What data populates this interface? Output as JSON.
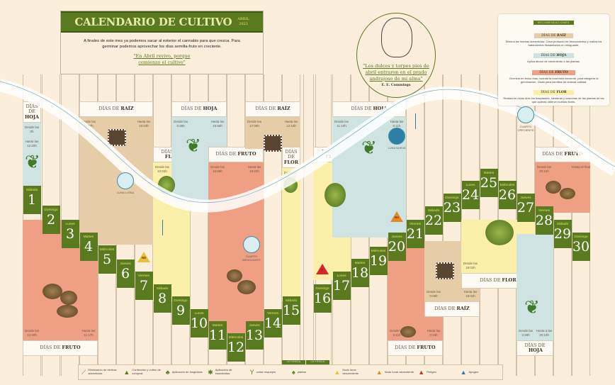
{
  "header": {
    "title": "CALENDARIO DE CULTIVO",
    "month": "ABRIL",
    "year": "2023",
    "intro": "A finales de este mes ya podemos sacar al exterior el cannabis para que crezca. Para germinar podemos aprovechar los días semilla-fruto en creciente.",
    "quote": "\"En Abril revivo, porque comienzo el cultivo\""
  },
  "portrait": {
    "quote": "\"Los dulces y torpes pies de abril entraron en el prado andrajoso de mi alma\"",
    "author": "E. E. Cummings"
  },
  "recommendations": {
    "title": "RECOMENDACIONES",
    "items": [
      {
        "head_prefix": "DÍAS DE",
        "head": "RAÍZ",
        "color": "#e6cda8",
        "text": "Elimina las hierbas adventicias. Cava profundo en desconderisa y realiza los tratamientos fitosanitarios en minguante."
      },
      {
        "head_prefix": "DÍAS DE",
        "head": "HOJA",
        "color": "#cfe3e3",
        "text": "Aplica abono de crecimiento a las plantas."
      },
      {
        "head_prefix": "DÍAS DE",
        "head": "FRUTO",
        "color": "#ef9f83",
        "text": "Germina en estos días, cuando la luna está creciente, para asegurar la germinación. Úsalo para semillas de dudosa calidad."
      },
      {
        "head_prefix": "DÍAS DE",
        "head": "FLOR",
        "color": "#fbefaa",
        "text": "Realiza en estos días los trasplantes, siembras y cosechas de las plantas de las que quieras obtener buenas flores."
      }
    ]
  },
  "colors": {
    "accent": "#5a7a1f",
    "fruto": "#ef9f83",
    "raiz": "#e6cda8",
    "hoja": "#cfe3e3",
    "flor": "#fbefaa"
  },
  "periods": [
    {
      "prefix": "DÍAS DE",
      "type": "HOJA",
      "desde": "Desde las 0h",
      "hasta": "Hasta las 12:20h"
    },
    {
      "prefix": "DÍAS DE",
      "type": "FRUTO",
      "desde": "Desde las 12:20h",
      "hasta": "Hasta las 11:17h"
    },
    {
      "prefix": "DÍAS DE",
      "type": "RAÍZ",
      "desde": "Desde las 11:17h",
      "hasta": "Hasta las 10:03h"
    },
    {
      "prefix": "DÍAS DE",
      "type": "FLOR",
      "desde": "Desde las 10:03h",
      "hasta": "Hasta las 9:35h"
    },
    {
      "prefix": "DÍAS DE",
      "type": "HOJA",
      "desde": "Desde las 9:36h",
      "hasta": "Hasta las 15:56h"
    },
    {
      "prefix": "DÍAS DE",
      "type": "FRUTO",
      "desde": "Desde las 16:56h",
      "hasta": "Hasta las 19:20h"
    },
    {
      "prefix": "DÍAS DE",
      "type": "RAÍZ",
      "desde": "Desde las 17:06h",
      "hasta": "Hasta las 12:18h"
    },
    {
      "prefix": "DÍAS DE",
      "type": "FLOR",
      "desde": "Desde las 19:08h",
      "hasta": ""
    },
    {
      "prefix": "DÍAS DE",
      "type": "FLOR",
      "desde": "",
      "hasta": "Hasta las 11:12h"
    },
    {
      "prefix": "DÍAS DE",
      "type": "HOJA",
      "desde": "Desde las 11:10h",
      "hasta": "Hasta las 6:11h"
    },
    {
      "prefix": "DÍAS DE",
      "type": "FRUTO",
      "desde": "Desde las 5:11h",
      "hasta": "Hasta las 0:16h"
    },
    {
      "prefix": "DÍAS DE",
      "type": "RAÍZ",
      "desde": "Desde las 0:09h",
      "hasta": "Hasta las 19:02h"
    },
    {
      "prefix": "DÍAS DE",
      "type": "FLOR",
      "desde": "Desde las 19:02h",
      "hasta": "Hasta las 3:28h"
    },
    {
      "prefix": "DÍAS DE",
      "type": "HOJA",
      "desde": "Desde las 3:28h",
      "hasta": "Hasta a las 20:10h"
    },
    {
      "prefix": "DÍAS DE",
      "type": "FRUTO",
      "desde": "Desde las 20:11h",
      "hasta": "Hasta el final"
    }
  ],
  "days": [
    {
      "weekday": "Sábado",
      "num": "1"
    },
    {
      "weekday": "Domingo",
      "num": "2"
    },
    {
      "weekday": "Lunes",
      "num": "3"
    },
    {
      "weekday": "Martes",
      "num": "4"
    },
    {
      "weekday": "Miércoles",
      "num": "5"
    },
    {
      "weekday": "Jueves",
      "num": "6"
    },
    {
      "weekday": "Viernes",
      "num": "7"
    },
    {
      "weekday": "Sábado",
      "num": "8"
    },
    {
      "weekday": "Domingo",
      "num": "9"
    },
    {
      "weekday": "Lunes",
      "num": "10"
    },
    {
      "weekday": "Martes",
      "num": "11"
    },
    {
      "weekday": "Miércoles",
      "num": "12"
    },
    {
      "weekday": "Jueves",
      "num": "13"
    },
    {
      "weekday": "Viernes",
      "num": "14"
    },
    {
      "weekday": "Sábado",
      "num": "15"
    },
    {
      "weekday": "Domingo",
      "num": "16"
    },
    {
      "weekday": "Lunes",
      "num": "17"
    },
    {
      "weekday": "Martes",
      "num": "18"
    },
    {
      "weekday": "Miércoles",
      "num": "19"
    },
    {
      "weekday": "Jueves",
      "num": "20"
    },
    {
      "weekday": "Viernes",
      "num": "21"
    },
    {
      "weekday": "Sábado",
      "num": "22"
    },
    {
      "weekday": "Domingo",
      "num": "23"
    },
    {
      "weekday": "Lunes",
      "num": "24"
    },
    {
      "weekday": "Martes",
      "num": "25"
    },
    {
      "weekday": "Miércoles",
      "num": "26"
    },
    {
      "weekday": "Jueves",
      "num": "27"
    },
    {
      "weekday": "Viernes",
      "num": "28"
    },
    {
      "weekday": "Sábado",
      "num": "29"
    },
    {
      "weekday": "Domingo",
      "num": "30"
    }
  ],
  "moons": [
    {
      "label": "LUNA LLENA",
      "day": "6"
    },
    {
      "label": "CUARTO MENGUANTE",
      "day": "13"
    },
    {
      "label": "LUNA NUEVA",
      "day": "20"
    },
    {
      "label": "CUARTO CRECIENTE",
      "day": "28"
    }
  ],
  "markers": [
    {
      "code": "ND",
      "day": "7",
      "color": "#e6c23a"
    },
    {
      "code": "F",
      "day": "16",
      "color": "#d8262a"
    },
    {
      "code": "NA",
      "day": "20",
      "color": "#e08a2a"
    }
  ],
  "legend": {
    "tab": "LEYENDA",
    "items": [
      {
        "icon": "knife-icon",
        "glyph": "⟋",
        "label": "Eliminación de hierbas adventicias"
      },
      {
        "icon": "compost-icon",
        "glyph": "▲",
        "label": "Confección y volteo de compost"
      },
      {
        "icon": "fungicide-icon",
        "glyph": "♣",
        "label": "Aplicación de fungicidas"
      },
      {
        "icon": "insecticide-icon",
        "glyph": "✱",
        "label": "Aplicación de insecticidas"
      },
      {
        "icon": "cutting-icon",
        "glyph": "Y",
        "label": "cortar esquejes"
      },
      {
        "icon": "plant-icon",
        "glyph": "♠",
        "label": "plantar"
      },
      {
        "icon": "descending-node-icon",
        "glyph": "▲",
        "color": "#e6c23a",
        "label": "Nodo lunar descendente"
      },
      {
        "icon": "ascending-node-icon",
        "glyph": "▲",
        "color": "#e08a2a",
        "label": "Nodo lunar ascendente"
      },
      {
        "icon": "perigee-icon",
        "glyph": "▲",
        "color": "#d8262a",
        "label": "Perigeo"
      },
      {
        "icon": "apogee-icon",
        "glyph": "▲",
        "color": "#2f7fa8",
        "label": "Apogeo"
      }
    ]
  }
}
